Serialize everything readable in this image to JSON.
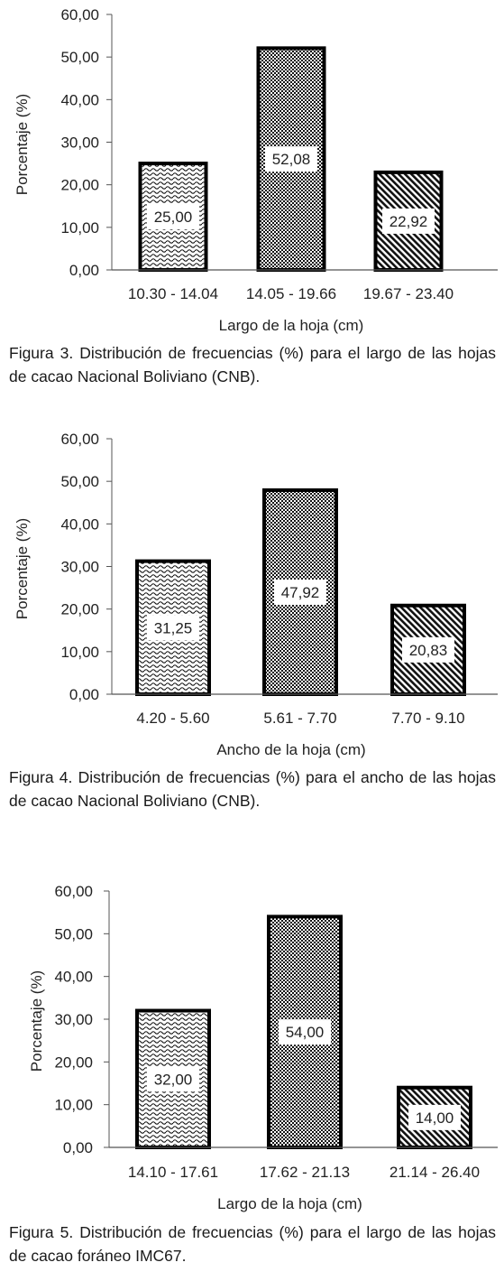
{
  "chart_data": [
    {
      "type": "bar",
      "categories": [
        "10.30 - 14.04",
        "14.05 - 19.66",
        "19.67 - 23.40"
      ],
      "values": [
        25.0,
        52.08,
        22.92
      ],
      "value_labels": [
        "25,00",
        "52,08",
        "22,92"
      ],
      "xlabel": "Largo de la hoja (cm)",
      "ylabel": "Porcentaje (%)",
      "ylim": [
        0,
        60
      ],
      "yticks": [
        "0,00",
        "10,00",
        "20,00",
        "30,00",
        "40,00",
        "50,00",
        "60,00"
      ],
      "caption": "Figura 3. Distribución de frecuencias (%) para el largo de las hojas de cacao Nacional Boliviano (CNB).",
      "patterns": [
        "wave",
        "checker",
        "diag"
      ]
    },
    {
      "type": "bar",
      "categories": [
        "4.20 - 5.60",
        "5.61 - 7.70",
        "7.70 - 9.10"
      ],
      "values": [
        31.25,
        47.92,
        20.83
      ],
      "value_labels": [
        "31,25",
        "47,92",
        "20,83"
      ],
      "xlabel": "Ancho de la hoja (cm)",
      "ylabel": "Porcentaje (%)",
      "ylim": [
        0,
        60
      ],
      "yticks": [
        "0,00",
        "10,00",
        "20,00",
        "30,00",
        "40,00",
        "50,00",
        "60,00"
      ],
      "caption": "Figura 4. Distribución de frecuencias (%) para el ancho de las hojas de cacao Nacional Boliviano (CNB).",
      "patterns": [
        "wave",
        "checker",
        "diag"
      ]
    },
    {
      "type": "bar",
      "categories": [
        "14.10 - 17.61",
        "17.62 - 21.13",
        "21.14 - 26.40"
      ],
      "values": [
        32.0,
        54.0,
        14.0
      ],
      "value_labels": [
        "32,00",
        "54,00",
        "14,00"
      ],
      "xlabel": "Largo de la hoja (cm)",
      "ylabel": "Porcentaje (%)",
      "ylim": [
        0,
        60
      ],
      "yticks": [
        "0,00",
        "10,00",
        "20,00",
        "30,00",
        "40,00",
        "50,00",
        "60,00"
      ],
      "caption": "Figura 5. Distribución de frecuencias (%) para el largo de las hojas de cacao foráneo IMC67.",
      "patterns": [
        "wave",
        "checker",
        "diag"
      ]
    }
  ]
}
